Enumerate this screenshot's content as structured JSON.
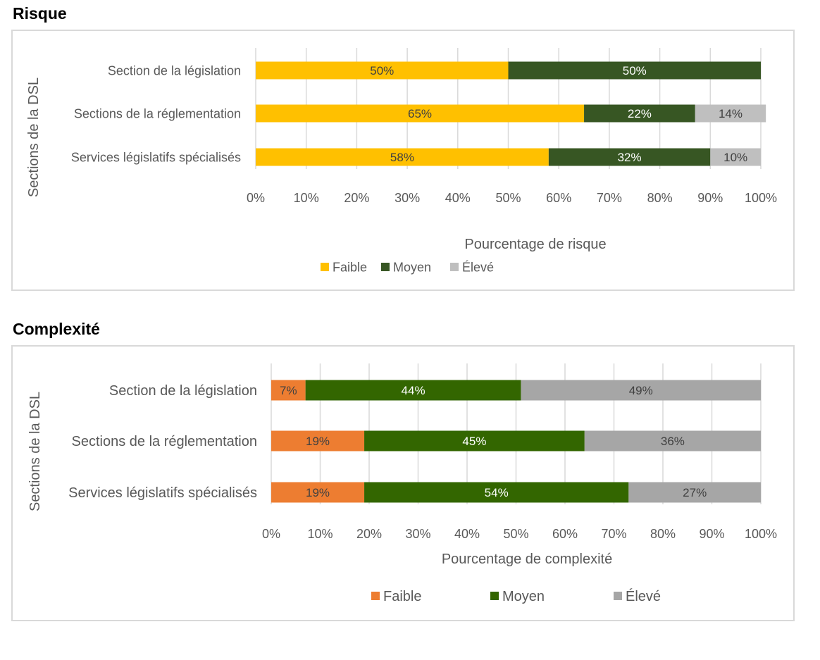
{
  "headings": {
    "risk": "Risque",
    "complexity": "Complexité"
  },
  "chart_data": [
    {
      "type": "bar",
      "orientation": "horizontal",
      "stacked": "percent",
      "title": "",
      "categories": [
        "Section de la législation",
        "Sections de la réglementation",
        "Services législatifs spécialisés"
      ],
      "series": [
        {
          "name": "Faible",
          "color": "#ffc000",
          "values": [
            50,
            65,
            58
          ],
          "labels": [
            "50%",
            "65%",
            "58%"
          ]
        },
        {
          "name": "Moyen",
          "color": "#375623",
          "values": [
            50,
            22,
            32
          ],
          "labels": [
            "50%",
            "22%",
            "32%"
          ]
        },
        {
          "name": "Élevé",
          "color": "#bfbfbf",
          "values": [
            0,
            14,
            10
          ],
          "labels": [
            "",
            "14%",
            "10%"
          ]
        }
      ],
      "xlabel": "Pourcentage de risque",
      "ylabel": "Sections de la DSL",
      "xlim": [
        0,
        100
      ],
      "ticks": [
        "0%",
        "10%",
        "20%",
        "30%",
        "40%",
        "50%",
        "60%",
        "70%",
        "80%",
        "90%",
        "100%"
      ],
      "grid": true,
      "legend": "bottom"
    },
    {
      "type": "bar",
      "orientation": "horizontal",
      "stacked": "percent",
      "title": "",
      "categories": [
        "Section de la législation",
        "Sections de la réglementation",
        "Services législatifs spécialisés"
      ],
      "series": [
        {
          "name": "Faible",
          "color": "#ed7d31",
          "values": [
            7,
            19,
            19
          ],
          "labels": [
            "7%",
            "19%",
            "19%"
          ]
        },
        {
          "name": "Moyen",
          "color": "#336600",
          "values": [
            44,
            45,
            54
          ],
          "labels": [
            "44%",
            "45%",
            "54%"
          ]
        },
        {
          "name": "Élevé",
          "color": "#a6a6a6",
          "values": [
            49,
            36,
            27
          ],
          "labels": [
            "49%",
            "36%",
            "27%"
          ]
        }
      ],
      "xlabel": "Pourcentage de complexité",
      "ylabel": "Sections de la DSL",
      "xlim": [
        0,
        100
      ],
      "ticks": [
        "0%",
        "10%",
        "20%",
        "30%",
        "40%",
        "50%",
        "60%",
        "70%",
        "80%",
        "90%",
        "100%"
      ],
      "grid": true,
      "legend": "bottom"
    }
  ]
}
